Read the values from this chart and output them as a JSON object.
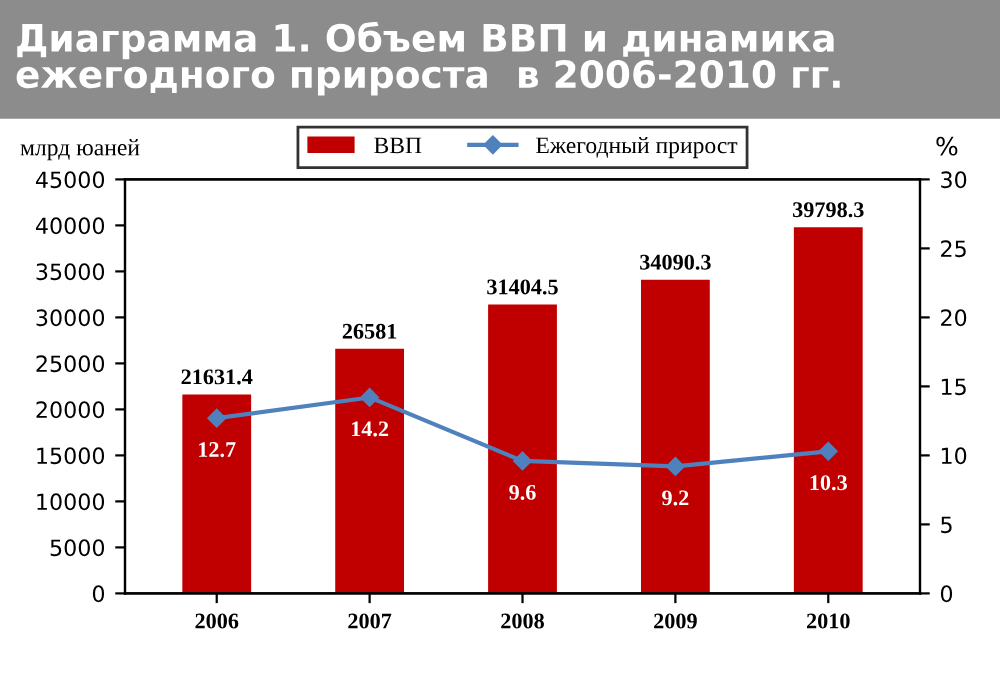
{
  "chart_data": {
    "type": "bar",
    "title": "Диаграмма 1. Объем ВВП и динамика\nежегодного прироста  в 2006-2010 гг.",
    "ylabel": "млрд юаней",
    "y2label": "%",
    "categories": [
      "2006",
      "2007",
      "2008",
      "2009",
      "2010"
    ],
    "series": [
      {
        "name": "ВВП",
        "color": "#c00000",
        "values": [
          21631.4,
          26581,
          31404.5,
          34090.3,
          39798.3
        ]
      },
      {
        "name": "Ежегодный прирост",
        "type": "line",
        "axis": "y2",
        "color": "#4f81bd",
        "marker": "diamond",
        "values": [
          12.7,
          14.2,
          9.6,
          9.2,
          10.3
        ]
      }
    ],
    "ylim": [
      0,
      45000
    ],
    "yticks": [
      0,
      5000,
      10000,
      15000,
      20000,
      25000,
      30000,
      35000,
      40000,
      45000
    ],
    "y2lim": [
      0,
      30
    ],
    "y2ticks": [
      0,
      5,
      10,
      15,
      20,
      25,
      30
    ],
    "data_labels": true,
    "legend": "top",
    "grid": false
  }
}
